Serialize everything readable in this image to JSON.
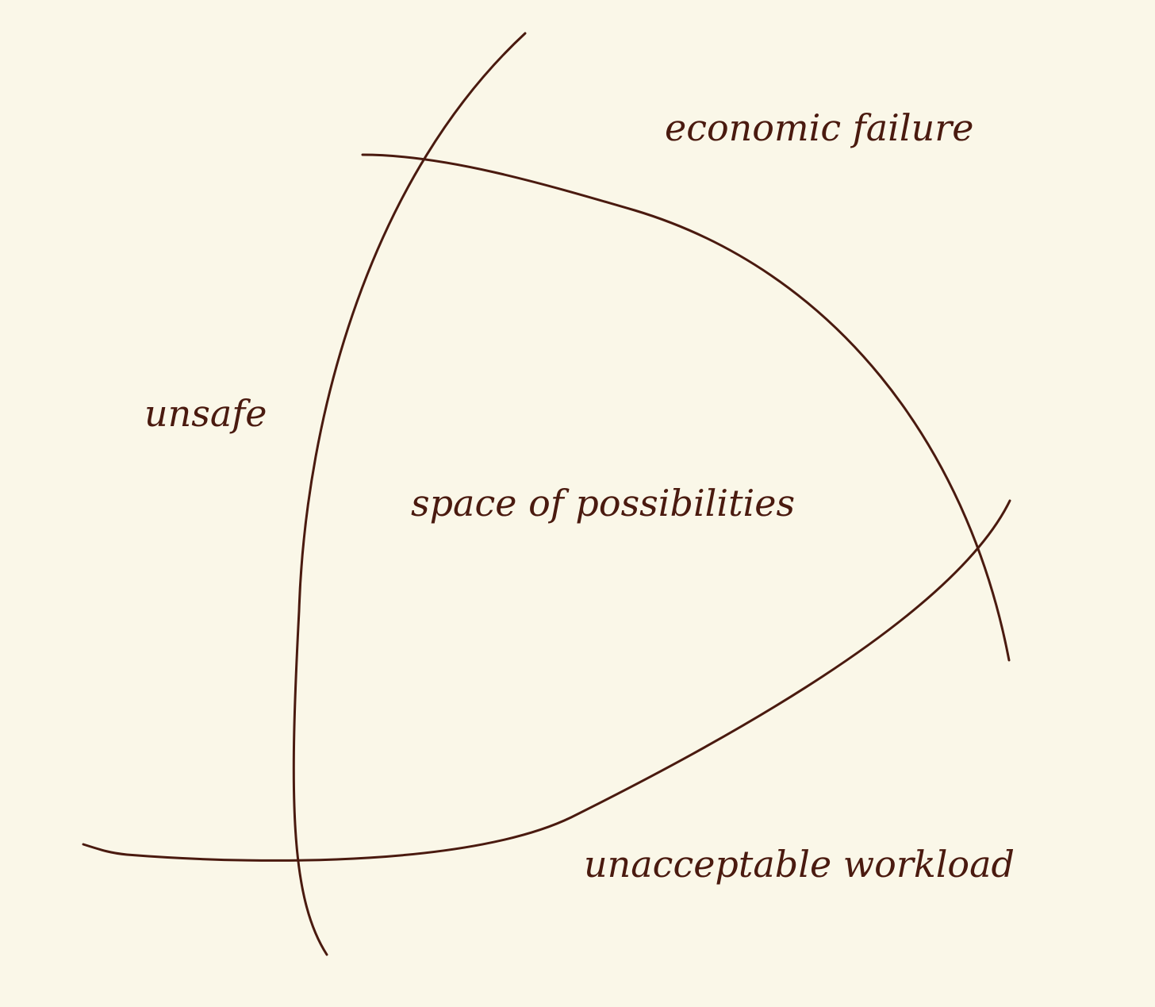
{
  "colors": {
    "background": "#faf7e8",
    "ink": "#4a1a0f"
  },
  "labels": {
    "economic_failure": "economic failure",
    "unsafe": "unsafe",
    "space_of_possibilities": "space of possibilities",
    "unacceptable_workload": "unacceptable workload"
  }
}
